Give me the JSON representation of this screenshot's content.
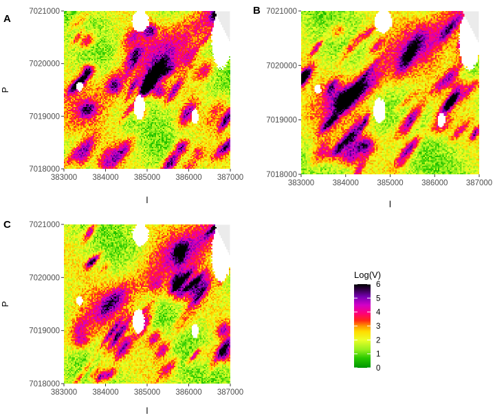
{
  "chart_data": {
    "type": "heatmap",
    "panels": [
      {
        "id": "A",
        "label": "A",
        "xlabel": "l",
        "ylabel": "P",
        "xlim": [
          383000,
          387000
        ],
        "ylim": [
          7018000,
          7021000
        ],
        "x_ticks": [
          "383000",
          "384000",
          "385000",
          "386000",
          "387000"
        ],
        "y_ticks": [
          "7018000",
          "7019000",
          "7020000",
          "7021000"
        ],
        "x_tick_values": [
          383000,
          384000,
          385000,
          386000,
          387000
        ],
        "y_tick_values": [
          7018000,
          7019000,
          7020000,
          7021000
        ],
        "seed": 11
      },
      {
        "id": "B",
        "label": "B",
        "xlabel": "l",
        "ylabel": "",
        "xlim": [
          383000,
          387000
        ],
        "ylim": [
          7018000,
          7021000
        ],
        "x_ticks": [
          "383000",
          "384000",
          "385000",
          "386000",
          "387000"
        ],
        "y_ticks": [
          "7018000",
          "7019000",
          "7020000",
          "7021000"
        ],
        "x_tick_values": [
          383000,
          384000,
          385000,
          386000,
          387000
        ],
        "y_tick_values": [
          7018000,
          7019000,
          7020000,
          7021000
        ],
        "seed": 29
      },
      {
        "id": "C",
        "label": "C",
        "xlabel": "l",
        "ylabel": "P",
        "xlim": [
          383000,
          387000
        ],
        "ylim": [
          7018000,
          7021000
        ],
        "x_ticks": [
          "383000",
          "384000",
          "385000",
          "386000",
          "387000"
        ],
        "y_ticks": [
          "7018000",
          "7019000",
          "7020000",
          "7021000"
        ],
        "x_tick_values": [
          383000,
          384000,
          385000,
          386000,
          387000
        ],
        "y_tick_values": [
          7018000,
          7019000,
          7020000,
          7021000
        ],
        "seed": 47
      }
    ],
    "legend": {
      "title": "Log(V)",
      "range": [
        0,
        6
      ],
      "ticks": [
        "0",
        "1",
        "2",
        "3",
        "4",
        "5",
        "6"
      ],
      "tick_values": [
        0,
        1,
        2,
        3,
        4,
        5,
        6
      ],
      "placement": "right",
      "colors": [
        "#00a000",
        "#33cc00",
        "#ccff33",
        "#ffff00",
        "#ff9900",
        "#ff0000",
        "#ff0088",
        "#cc00cc",
        "#7700bb",
        "#000000"
      ]
    },
    "panel_background": "#ebebeb",
    "grid": true,
    "missing_color": "#ffffff"
  }
}
